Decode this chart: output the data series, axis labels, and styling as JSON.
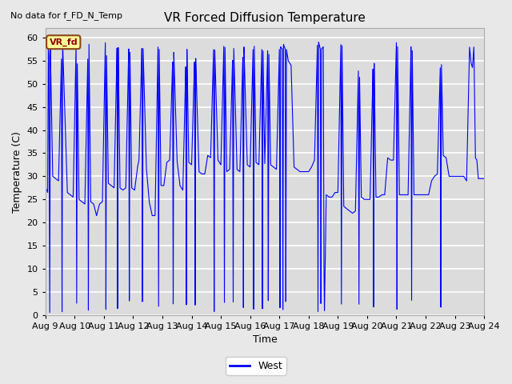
{
  "title": "VR Forced Diffusion Temperature",
  "xlabel": "Time",
  "ylabel": "Temperature (C)",
  "no_data_label": "No data for f_FD_N_Temp",
  "legend_label": "West",
  "vr_fd_label": "VR_fd",
  "ylim": [
    0,
    62
  ],
  "yticks": [
    0,
    5,
    10,
    15,
    20,
    25,
    30,
    35,
    40,
    45,
    50,
    55,
    60
  ],
  "line_color": "#0000FF",
  "background_color": "#DCDCDC",
  "figure_bg": "#E8E8E8",
  "grid_color": "#FFFFFF",
  "annotation_box_facecolor": "#FFFF99",
  "annotation_box_edgecolor": "#8B4513",
  "annotation_text_color": "#8B0000",
  "spine_color": "#AAAAAA",
  "waypoints": [
    [
      0.0,
      27.5
    ],
    [
      0.05,
      27.0
    ],
    [
      0.08,
      26.5
    ],
    [
      0.1,
      58.0
    ],
    [
      0.12,
      56.0
    ],
    [
      0.15,
      0.5
    ],
    [
      0.17,
      58.0
    ],
    [
      0.25,
      30.0
    ],
    [
      0.35,
      29.5
    ],
    [
      0.45,
      29.0
    ],
    [
      0.55,
      55.5
    ],
    [
      0.57,
      0.5
    ],
    [
      0.59,
      59.0
    ],
    [
      0.75,
      26.5
    ],
    [
      0.85,
      26.0
    ],
    [
      0.95,
      25.5
    ],
    [
      1.05,
      59.0
    ],
    [
      1.07,
      0.5
    ],
    [
      1.09,
      55.0
    ],
    [
      1.15,
      25.0
    ],
    [
      1.25,
      24.5
    ],
    [
      1.35,
      24.0
    ],
    [
      1.45,
      55.5
    ],
    [
      1.47,
      0.5
    ],
    [
      1.49,
      59.0
    ],
    [
      1.55,
      24.5
    ],
    [
      1.65,
      24.0
    ],
    [
      1.75,
      21.5
    ],
    [
      1.85,
      24.0
    ],
    [
      1.95,
      24.5
    ],
    [
      2.05,
      59.0
    ],
    [
      2.07,
      0.5
    ],
    [
      2.09,
      56.5
    ],
    [
      2.15,
      28.5
    ],
    [
      2.25,
      28.0
    ],
    [
      2.35,
      27.5
    ],
    [
      2.45,
      58.0
    ],
    [
      2.47,
      0.5
    ],
    [
      2.49,
      58.0
    ],
    [
      2.55,
      27.5
    ],
    [
      2.65,
      27.0
    ],
    [
      2.75,
      27.5
    ],
    [
      2.85,
      58.0
    ],
    [
      2.87,
      0.5
    ],
    [
      2.89,
      57.5
    ],
    [
      2.95,
      27.5
    ],
    [
      3.05,
      27.0
    ],
    [
      3.15,
      32.0
    ],
    [
      3.2,
      33.5
    ],
    [
      3.3,
      58.0
    ],
    [
      3.32,
      0.5
    ],
    [
      3.34,
      58.0
    ],
    [
      3.45,
      32.0
    ],
    [
      3.55,
      24.5
    ],
    [
      3.65,
      21.5
    ],
    [
      3.75,
      21.5
    ],
    [
      3.85,
      58.0
    ],
    [
      3.87,
      0.5
    ],
    [
      3.89,
      58.0
    ],
    [
      3.95,
      28.0
    ],
    [
      4.05,
      28.0
    ],
    [
      4.15,
      33.0
    ],
    [
      4.25,
      33.5
    ],
    [
      4.35,
      55.0
    ],
    [
      4.37,
      0.5
    ],
    [
      4.39,
      57.0
    ],
    [
      4.5,
      33.5
    ],
    [
      4.6,
      28.0
    ],
    [
      4.7,
      27.0
    ],
    [
      4.8,
      54.0
    ],
    [
      4.82,
      0.5
    ],
    [
      4.84,
      57.5
    ],
    [
      4.9,
      33.0
    ],
    [
      5.0,
      32.5
    ],
    [
      5.1,
      55.0
    ],
    [
      5.12,
      0.5
    ],
    [
      5.14,
      55.5
    ],
    [
      5.25,
      31.0
    ],
    [
      5.35,
      30.5
    ],
    [
      5.45,
      30.5
    ],
    [
      5.55,
      34.5
    ],
    [
      5.65,
      34.0
    ],
    [
      5.75,
      57.5
    ],
    [
      5.77,
      0.5
    ],
    [
      5.79,
      57.5
    ],
    [
      5.9,
      33.5
    ],
    [
      6.0,
      32.5
    ],
    [
      6.1,
      58.5
    ],
    [
      6.12,
      0.5
    ],
    [
      6.14,
      58.5
    ],
    [
      6.2,
      31.0
    ],
    [
      6.3,
      31.5
    ],
    [
      6.4,
      55.5
    ],
    [
      6.42,
      0.5
    ],
    [
      6.44,
      58.0
    ],
    [
      6.55,
      31.5
    ],
    [
      6.65,
      31.0
    ],
    [
      6.75,
      56.0
    ],
    [
      6.77,
      0.5
    ],
    [
      6.79,
      58.0
    ],
    [
      6.9,
      32.5
    ],
    [
      7.0,
      32.0
    ],
    [
      7.1,
      57.5
    ],
    [
      7.12,
      0.5
    ],
    [
      7.14,
      58.5
    ],
    [
      7.2,
      33.0
    ],
    [
      7.3,
      32.5
    ],
    [
      7.4,
      57.5
    ],
    [
      7.42,
      0.5
    ],
    [
      7.44,
      57.5
    ],
    [
      7.5,
      32.5
    ],
    [
      7.6,
      57.5
    ],
    [
      7.62,
      0.5
    ],
    [
      7.64,
      57.0
    ],
    [
      7.7,
      32.5
    ],
    [
      7.8,
      32.0
    ],
    [
      7.9,
      31.5
    ],
    [
      8.0,
      57.5
    ],
    [
      8.02,
      0.5
    ],
    [
      8.04,
      58.0
    ],
    [
      8.1,
      57.5
    ],
    [
      8.12,
      0.5
    ],
    [
      8.14,
      58.5
    ],
    [
      8.2,
      57.5
    ],
    [
      8.22,
      0.5
    ],
    [
      8.24,
      57.5
    ],
    [
      8.3,
      55.0
    ],
    [
      8.4,
      54.0
    ],
    [
      8.5,
      32.0
    ],
    [
      8.6,
      31.5
    ],
    [
      8.7,
      31.0
    ],
    [
      8.8,
      31.0
    ],
    [
      8.9,
      31.0
    ],
    [
      9.0,
      31.0
    ],
    [
      9.1,
      32.0
    ],
    [
      9.2,
      33.5
    ],
    [
      9.3,
      58.5
    ],
    [
      9.32,
      0.5
    ],
    [
      9.34,
      59.0
    ],
    [
      9.4,
      57.5
    ],
    [
      9.42,
      0.5
    ],
    [
      9.44,
      57.5
    ],
    [
      9.5,
      58.0
    ],
    [
      9.52,
      14.0
    ],
    [
      9.54,
      0.5
    ],
    [
      9.6,
      26.0
    ],
    [
      9.7,
      25.5
    ],
    [
      9.8,
      25.5
    ],
    [
      9.9,
      26.5
    ],
    [
      10.0,
      26.5
    ],
    [
      10.1,
      58.5
    ],
    [
      10.12,
      0.5
    ],
    [
      10.14,
      59.0
    ],
    [
      10.2,
      23.5
    ],
    [
      10.3,
      23.0
    ],
    [
      10.4,
      22.5
    ],
    [
      10.5,
      22.0
    ],
    [
      10.6,
      22.5
    ],
    [
      10.7,
      53.0
    ],
    [
      10.72,
      0.5
    ],
    [
      10.74,
      52.0
    ],
    [
      10.8,
      25.5
    ],
    [
      10.9,
      25.0
    ],
    [
      11.0,
      25.0
    ],
    [
      11.1,
      25.0
    ],
    [
      11.2,
      53.5
    ],
    [
      11.22,
      0.5
    ],
    [
      11.24,
      54.5
    ],
    [
      11.3,
      25.5
    ],
    [
      11.4,
      25.5
    ],
    [
      11.5,
      26.0
    ],
    [
      11.6,
      26.0
    ],
    [
      11.7,
      34.0
    ],
    [
      11.8,
      33.5
    ],
    [
      11.9,
      33.5
    ],
    [
      12.0,
      59.0
    ],
    [
      12.02,
      0.5
    ],
    [
      12.04,
      58.5
    ],
    [
      12.1,
      26.0
    ],
    [
      12.2,
      26.0
    ],
    [
      12.3,
      26.0
    ],
    [
      12.4,
      26.0
    ],
    [
      12.5,
      58.5
    ],
    [
      12.52,
      0.5
    ],
    [
      12.54,
      58.0
    ],
    [
      12.6,
      26.0
    ],
    [
      12.7,
      26.0
    ],
    [
      12.8,
      26.0
    ],
    [
      12.9,
      26.0
    ],
    [
      13.0,
      26.0
    ],
    [
      13.1,
      26.0
    ],
    [
      13.2,
      29.0
    ],
    [
      13.25,
      29.5
    ],
    [
      13.3,
      30.0
    ],
    [
      13.4,
      30.5
    ],
    [
      13.5,
      53.5
    ],
    [
      13.52,
      0.5
    ],
    [
      13.54,
      54.5
    ],
    [
      13.6,
      34.5
    ],
    [
      13.7,
      34.0
    ],
    [
      13.8,
      30.0
    ],
    [
      13.9,
      30.0
    ],
    [
      14.0,
      30.0
    ],
    [
      14.1,
      30.0
    ],
    [
      14.2,
      30.0
    ],
    [
      14.3,
      30.0
    ],
    [
      14.4,
      29.0
    ],
    [
      14.5,
      58.0
    ],
    [
      14.55,
      54.5
    ],
    [
      14.6,
      53.5
    ],
    [
      14.65,
      58.0
    ],
    [
      14.7,
      34.0
    ],
    [
      14.75,
      33.5
    ],
    [
      14.8,
      29.5
    ],
    [
      14.9,
      29.5
    ],
    [
      15.0,
      29.5
    ]
  ]
}
